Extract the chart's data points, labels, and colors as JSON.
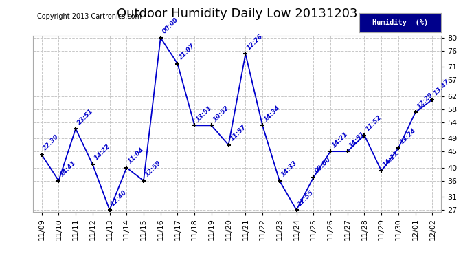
{
  "title": "Outdoor Humidity Daily Low 20131203",
  "copyright": "Copyright 2013 Cartronics.com",
  "legend_label": "Humidity  (%)",
  "x_labels": [
    "11/09",
    "11/10",
    "11/11",
    "11/12",
    "11/13",
    "11/14",
    "11/15",
    "11/16",
    "11/17",
    "11/18",
    "11/19",
    "11/20",
    "11/21",
    "11/22",
    "11/23",
    "11/24",
    "11/25",
    "11/26",
    "11/27",
    "11/28",
    "11/29",
    "11/30",
    "12/01",
    "12/02"
  ],
  "y_values": [
    44,
    36,
    52,
    41,
    27,
    40,
    36,
    80,
    72,
    53,
    53,
    47,
    75,
    53,
    36,
    27,
    37,
    45,
    45,
    50,
    39,
    46,
    57,
    61
  ],
  "time_labels": [
    "22:39",
    "14:41",
    "23:51",
    "14:22",
    "12:40",
    "11:04",
    "12:59",
    "00:00",
    "21:07",
    "13:51",
    "10:52",
    "11:57",
    "12:26",
    "14:34",
    "14:33",
    "12:55",
    "00:00",
    "14:21",
    "14:51",
    "11:52",
    "14:11",
    "13:24",
    "12:29",
    "13:47"
  ],
  "ylim_min": 27,
  "ylim_max": 80,
  "yticks": [
    27,
    31,
    36,
    40,
    45,
    49,
    54,
    58,
    62,
    67,
    71,
    76,
    80
  ],
  "line_color": "#0000cc",
  "marker_color": "#000000",
  "bg_color": "#ffffff",
  "grid_color": "#c8c8c8",
  "title_fontsize": 13,
  "tick_fontsize": 8,
  "annotation_fontsize": 6.5
}
